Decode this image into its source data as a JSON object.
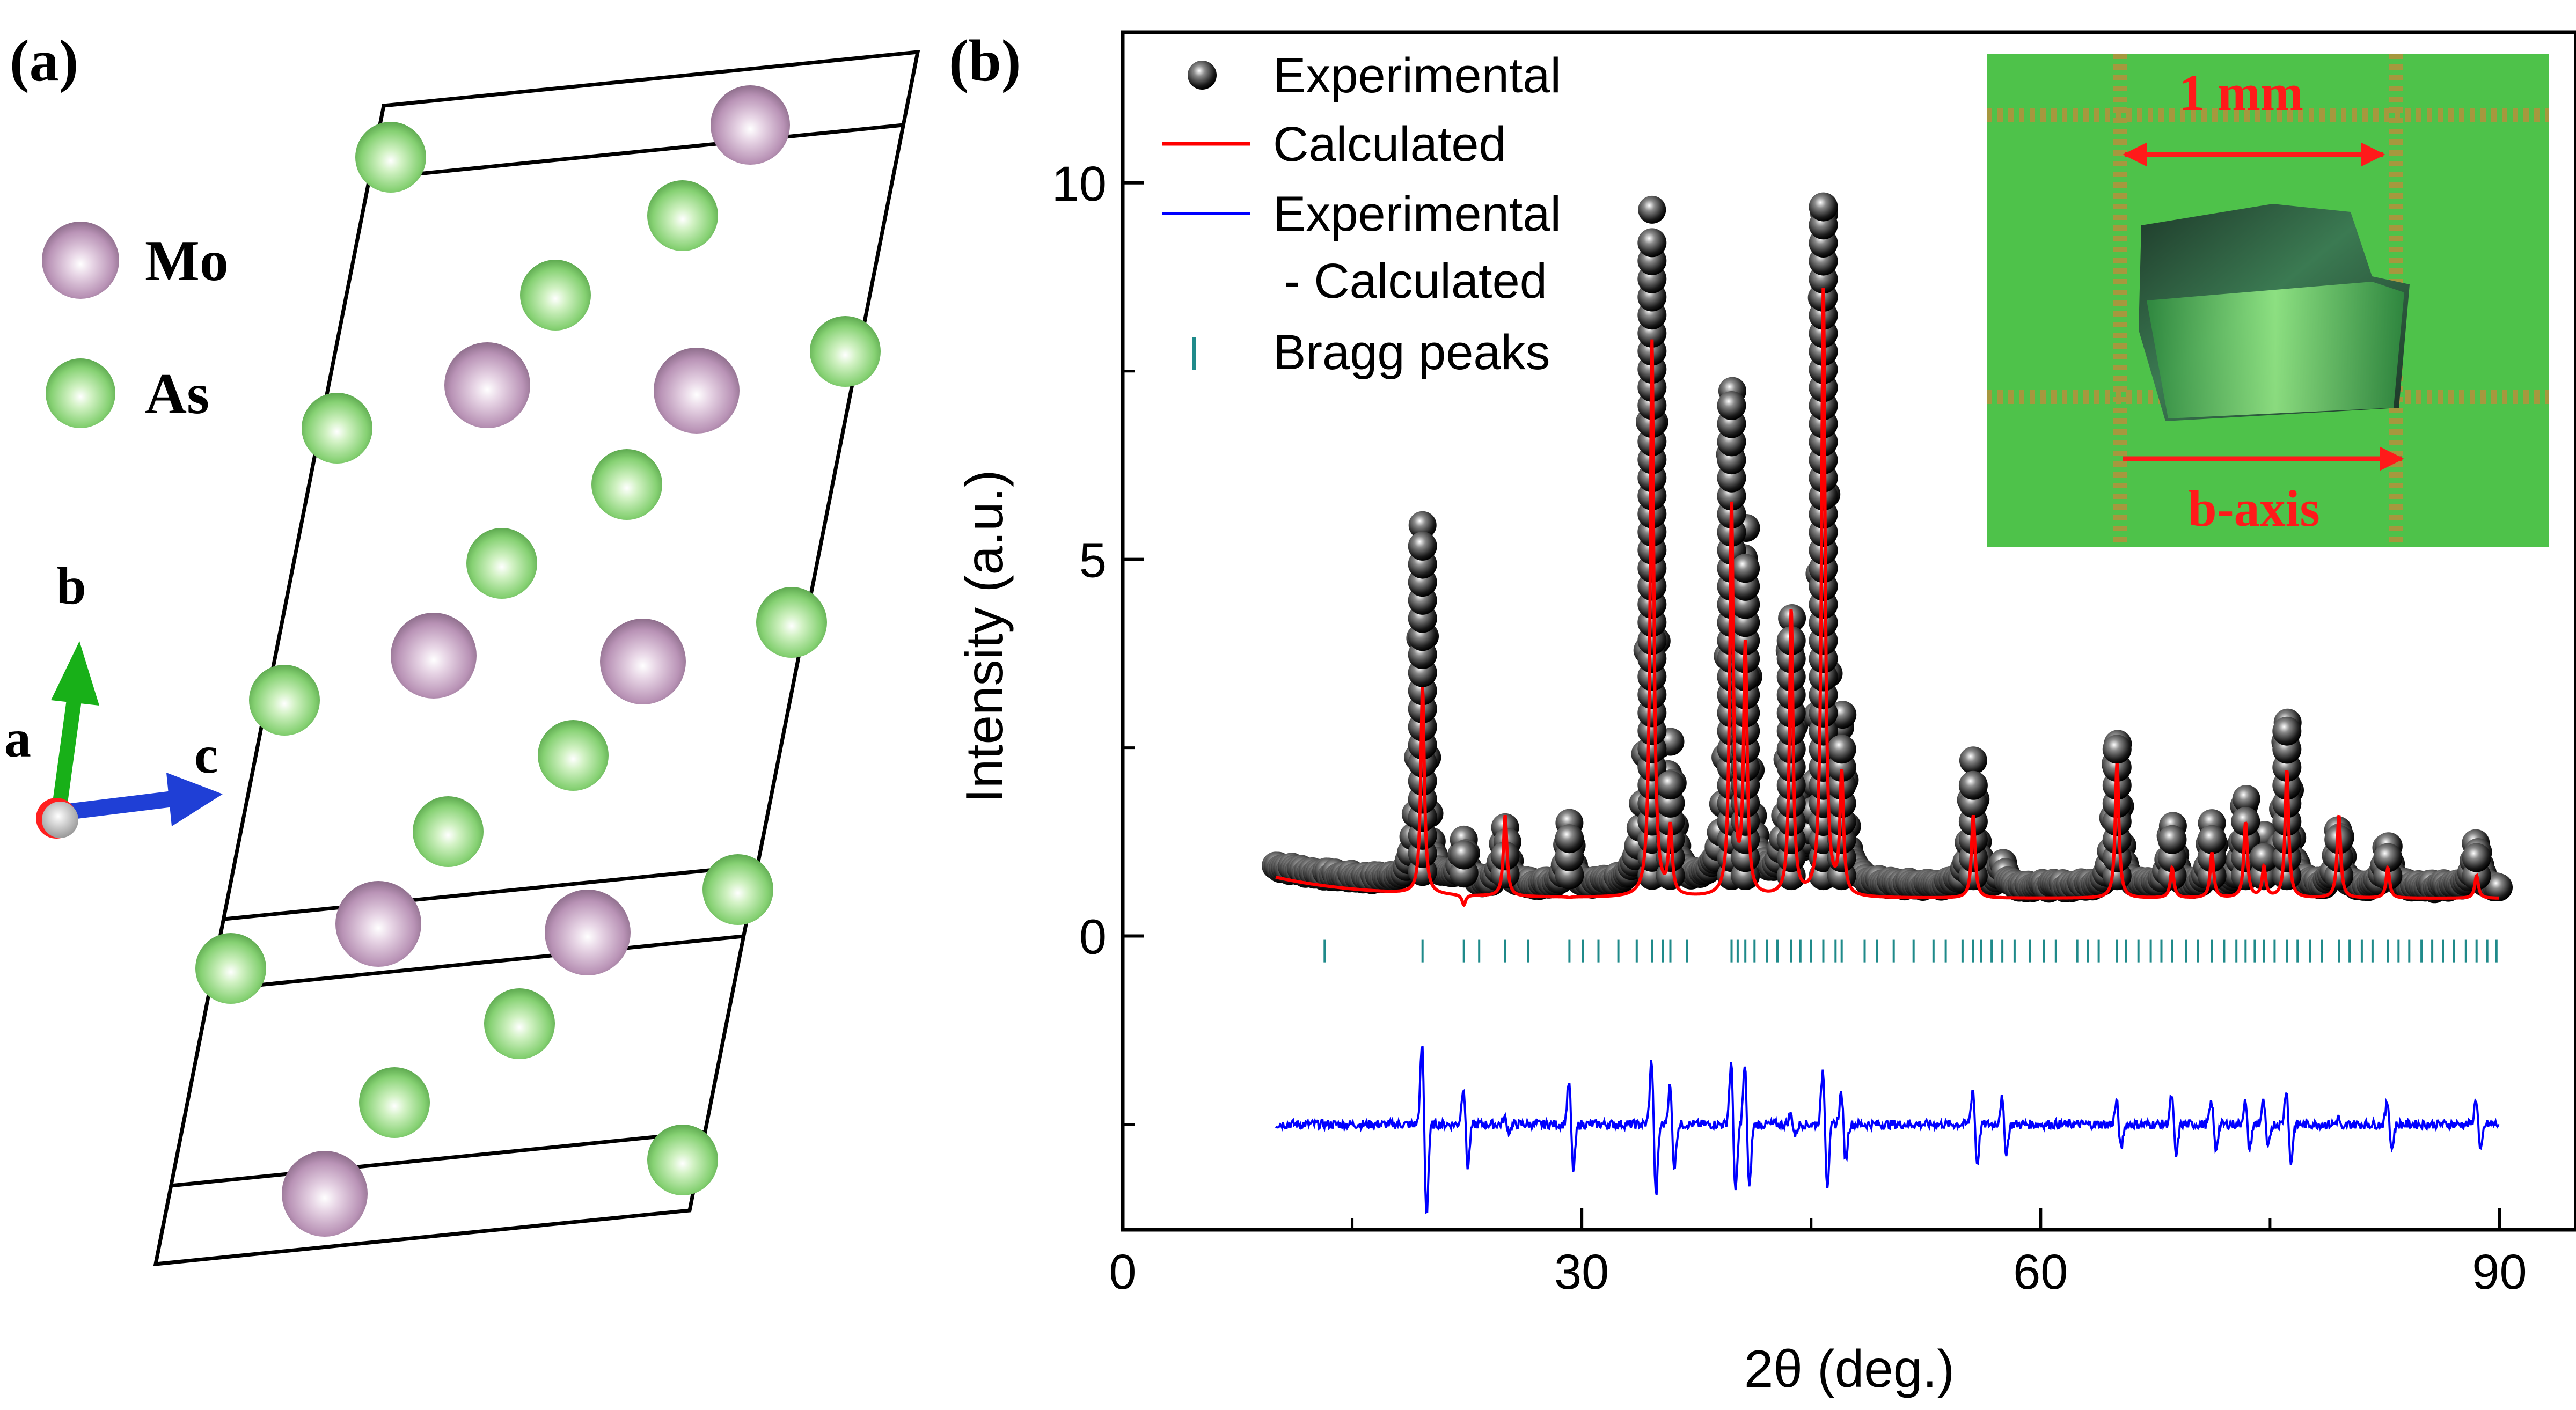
{
  "panel_a": {
    "label": "(a)",
    "legend": [
      {
        "name": "Mo",
        "color": "#c7a3c3"
      },
      {
        "name": "As",
        "color": "#7fcf6a"
      }
    ],
    "axes": {
      "b": "b",
      "a": "a",
      "c": "c"
    },
    "atom_colors": {
      "Mo": "#b993b6",
      "As": "#86d173",
      "highlight": "#ffffff"
    }
  },
  "panel_b": {
    "label": "(b)"
  },
  "chart_data": {
    "type": "scatter",
    "title": "",
    "xlabel": "2θ (deg.)",
    "ylabel": "Intensity (a.u.)",
    "xlim": [
      0,
      95
    ],
    "ylim": [
      -3.9,
      12.0
    ],
    "xticks": [
      0,
      30,
      60,
      90
    ],
    "yticks": [
      0,
      5,
      10
    ],
    "grid": false,
    "legend_position": "top-left",
    "background_level": 0.5,
    "difference_offset": -2.5,
    "peaks": [
      {
        "x": 19.6,
        "calc": 3.3,
        "exp": 5.3
      },
      {
        "x": 22.3,
        "calc": 0.4,
        "exp": 1.1
      },
      {
        "x": 25.0,
        "calc": 1.6,
        "exp": 1.3
      },
      {
        "x": 29.2,
        "calc": 0.5,
        "exp": 1.3
      },
      {
        "x": 34.6,
        "calc": 7.9,
        "exp": 9.4
      },
      {
        "x": 35.8,
        "calc": 1.4,
        "exp": 2.1
      },
      {
        "x": 39.8,
        "calc": 5.7,
        "exp": 7.1
      },
      {
        "x": 40.7,
        "calc": 3.8,
        "exp": 5.1
      },
      {
        "x": 43.7,
        "calc": 4.3,
        "exp": 4.1
      },
      {
        "x": 45.8,
        "calc": 8.6,
        "exp": 9.8
      },
      {
        "x": 47.0,
        "calc": 2.1,
        "exp": 2.6
      },
      {
        "x": 55.6,
        "calc": 1.6,
        "exp": 2.2
      },
      {
        "x": 57.5,
        "calc": 0.5,
        "exp": 0.8
      },
      {
        "x": 65.0,
        "calc": 2.3,
        "exp": 2.5
      },
      {
        "x": 68.6,
        "calc": 0.9,
        "exp": 1.3
      },
      {
        "x": 71.2,
        "calc": 1.1,
        "exp": 1.3
      },
      {
        "x": 73.4,
        "calc": 1.5,
        "exp": 1.7
      },
      {
        "x": 74.6,
        "calc": 0.9,
        "exp": 1.1
      },
      {
        "x": 76.1,
        "calc": 2.2,
        "exp": 2.8
      },
      {
        "x": 79.5,
        "calc": 1.6,
        "exp": 1.3
      },
      {
        "x": 82.7,
        "calc": 0.9,
        "exp": 1.1
      },
      {
        "x": 88.5,
        "calc": 0.8,
        "exp": 1.1
      }
    ],
    "bragg_peaks": [
      13.2,
      19.6,
      22.3,
      23.3,
      25.0,
      26.5,
      29.2,
      30.1,
      31.1,
      32.4,
      33.6,
      34.6,
      35.3,
      35.8,
      36.9,
      39.8,
      40.2,
      40.7,
      41.3,
      42.1,
      42.8,
      43.7,
      44.3,
      45.0,
      45.8,
      46.6,
      47.0,
      48.5,
      49.3,
      50.4,
      51.7,
      53.0,
      53.8,
      54.9,
      55.6,
      56.1,
      56.8,
      57.5,
      58.3,
      59.3,
      60.2,
      61.0,
      62.4,
      63.1,
      63.8,
      65.0,
      65.6,
      66.4,
      67.2,
      67.9,
      68.6,
      69.5,
      70.3,
      71.2,
      72.0,
      72.8,
      73.4,
      74.0,
      74.6,
      75.3,
      76.1,
      76.8,
      77.6,
      78.4,
      79.5,
      80.2,
      81.0,
      81.7,
      82.7,
      83.4,
      84.1,
      84.9,
      85.6,
      86.3,
      87.0,
      87.8,
      88.5,
      89.2,
      89.8
    ],
    "series": [
      {
        "name": "Experimental",
        "kind": "points",
        "color": "#000000"
      },
      {
        "name": "Calculated",
        "kind": "line",
        "color": "#ff0000"
      },
      {
        "name": "Experimental - Calculated",
        "kind": "line",
        "color": "#0000ff"
      },
      {
        "name": "Bragg peaks",
        "kind": "ticks",
        "color": "#1f8a8a"
      }
    ],
    "legend": {
      "experimental": "Experimental",
      "calculated": "Calculated",
      "difference_line1": "Experimental",
      "difference_line2": "- Calculated",
      "bragg": "Bragg peaks"
    },
    "inset": {
      "scale_label": "1 mm",
      "axis_label": "b-axis",
      "background": "#4ec24a",
      "grid_color": "#c28a3a",
      "crystal_color": "#3a6b45",
      "arrow_color": "#ff1a1a"
    }
  }
}
